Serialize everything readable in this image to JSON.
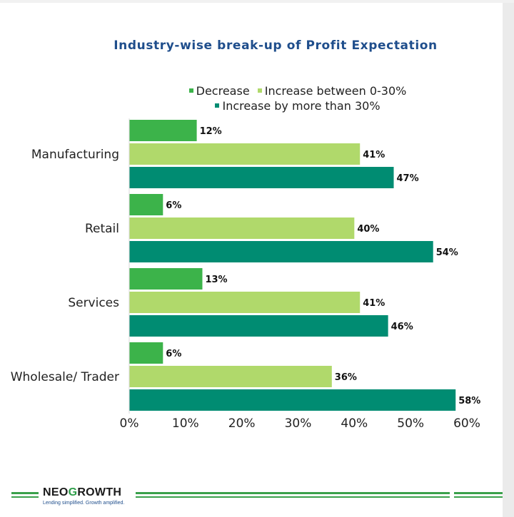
{
  "chart_data": {
    "type": "bar",
    "orientation": "horizontal",
    "title": "Industry-wise break-up of Profit Expectation",
    "categories": [
      "Manufacturing",
      "Retail",
      "Services",
      "Wholesale/ Trader"
    ],
    "series": [
      {
        "name": "Decrease",
        "color": "#3cb34a",
        "values": [
          12,
          6,
          13,
          6
        ]
      },
      {
        "name": "Increase between 0-30%",
        "color": "#b0d96b",
        "values": [
          41,
          40,
          41,
          36
        ]
      },
      {
        "name": "Increase by more than 30%",
        "color": "#008c72",
        "values": [
          47,
          54,
          46,
          58
        ]
      }
    ],
    "value_suffix": "%",
    "xlim": [
      0,
      60
    ],
    "xticks": [
      "0%",
      "10%",
      "20%",
      "30%",
      "40%",
      "50%",
      "60%"
    ],
    "grid": false,
    "legend_position": "top"
  },
  "footer": {
    "brand_prefix": "NEO",
    "brand_g": "G",
    "brand_suffix": "ROWTH",
    "tagline": "Lending simplified. Growth amplified."
  }
}
